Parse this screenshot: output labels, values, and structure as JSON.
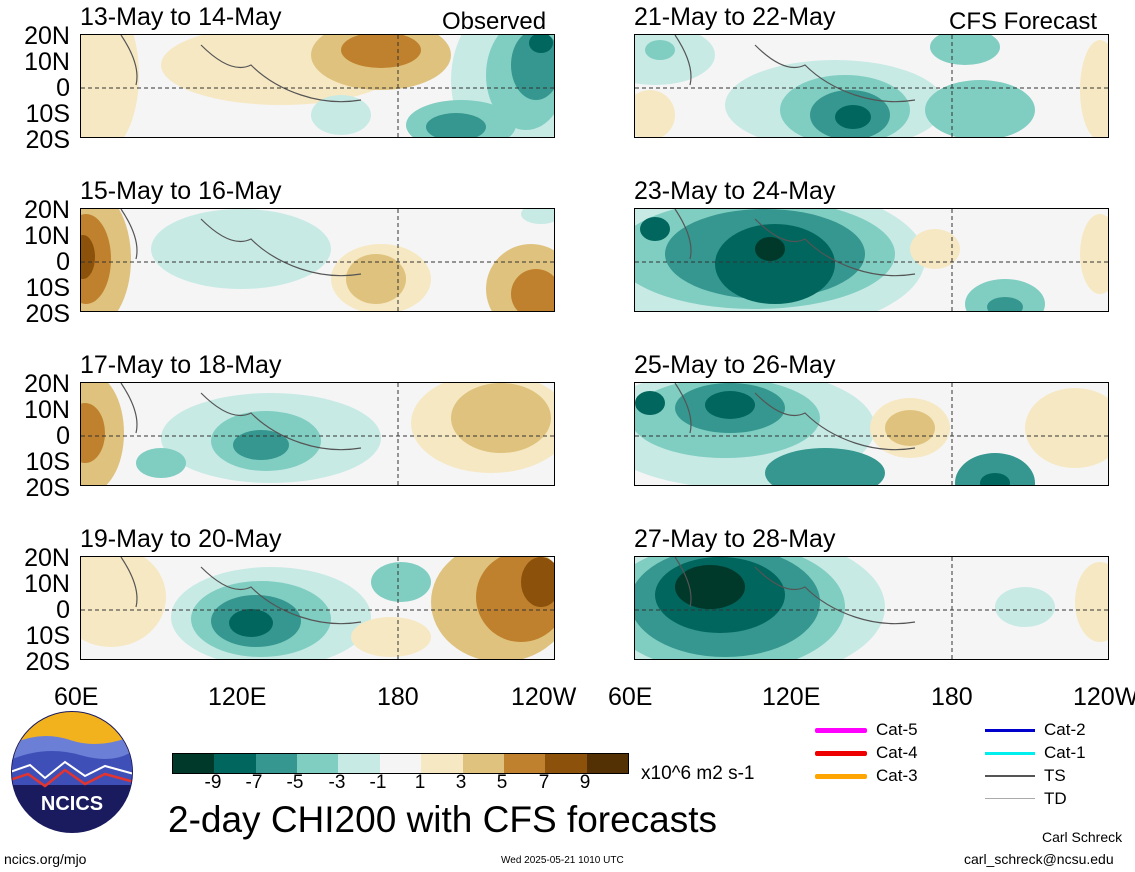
{
  "header": {
    "left_tag": "Observed",
    "right_tag": "CFS Forecast"
  },
  "panels": {
    "left": [
      "13-May to 14-May",
      "15-May to 16-May",
      "17-May to 18-May",
      "19-May to 20-May"
    ],
    "right": [
      "21-May to 22-May",
      "23-May to 24-May",
      "25-May to 26-May",
      "27-May to 28-May"
    ]
  },
  "lat_labels": [
    "20N",
    "10N",
    "0",
    "10S",
    "20S"
  ],
  "lon_labels": [
    "60E",
    "120E",
    "180",
    "120W"
  ],
  "colorbar": {
    "ticks": [
      "-9",
      "-7",
      "-5",
      "-3",
      "-1",
      "1",
      "3",
      "5",
      "7",
      "9"
    ],
    "units": "x10^6 m2 s-1",
    "colors": [
      "#00382a",
      "#01665e",
      "#35978f",
      "#80cdc1",
      "#c7eae5",
      "#f5f5f5",
      "#f6e8c3",
      "#dfc27d",
      "#bf812d",
      "#8c510a",
      "#543005"
    ]
  },
  "title": "2-day CHI200 with CFS forecasts",
  "legend": {
    "items": [
      {
        "label": "Cat-5",
        "color": "#ff00ff"
      },
      {
        "label": "Cat-4",
        "color": "#ee0000"
      },
      {
        "label": "Cat-3",
        "color": "#ffa500"
      },
      {
        "label": "Cat-2",
        "color": "#0000cc"
      },
      {
        "label": "Cat-1",
        "color": "#00eeee"
      },
      {
        "label": "TS",
        "color": "#555555"
      },
      {
        "label": "TD",
        "color": "#aaaaaa"
      }
    ]
  },
  "logo": {
    "text": "NCICS"
  },
  "footer": {
    "url": "ncics.org/mjo",
    "timestamp": "Wed 2025-05-21 1010 UTC",
    "author": "Carl Schreck",
    "email": "carl_schreck@ncsu.edu"
  }
}
